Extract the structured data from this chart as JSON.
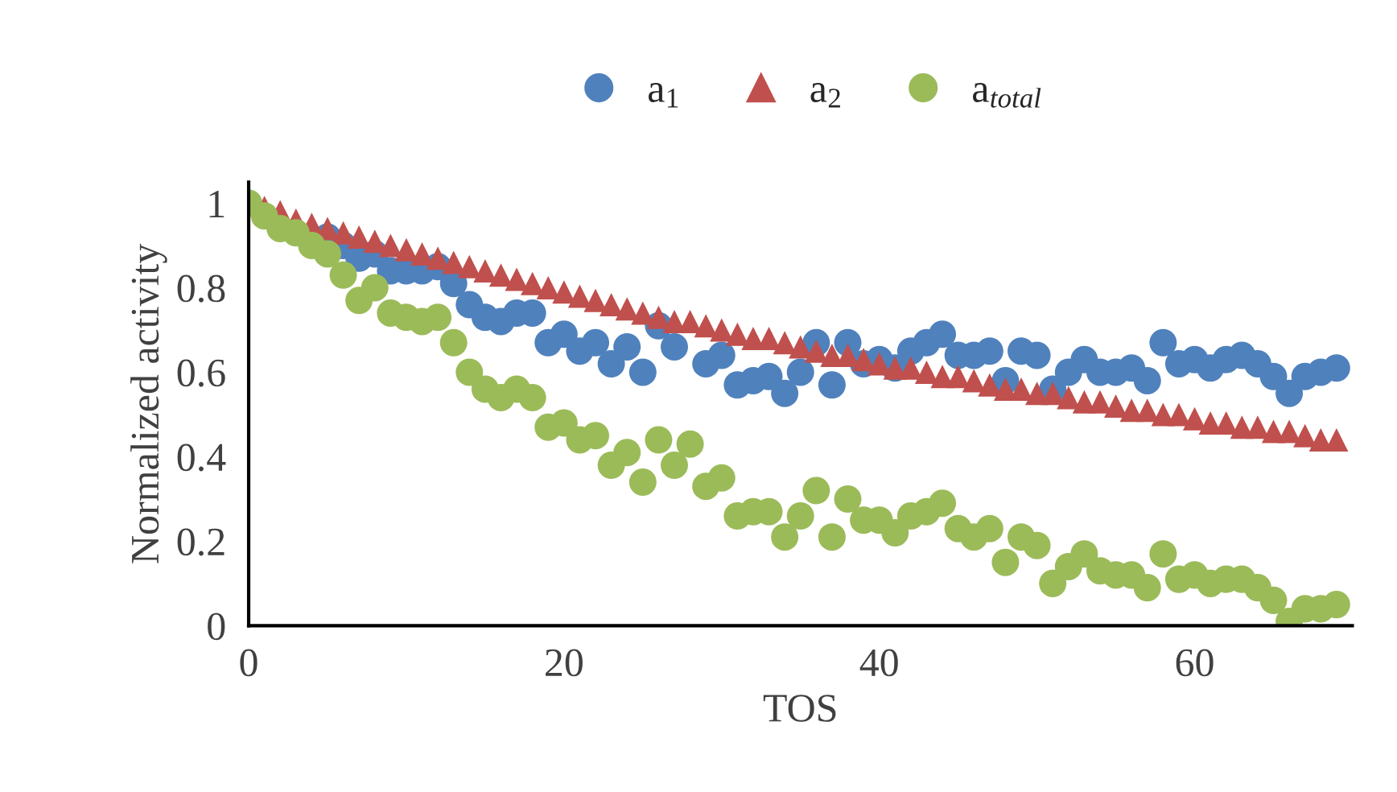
{
  "chart_data": {
    "type": "scatter",
    "xlabel": "TOS",
    "ylabel": "Normalized activity",
    "x": [
      0,
      1,
      2,
      3,
      4,
      5,
      6,
      7,
      8,
      9,
      10,
      11,
      12,
      13,
      14,
      15,
      16,
      17,
      18,
      19,
      20,
      21,
      22,
      23,
      24,
      25,
      26,
      27,
      28,
      29,
      30,
      31,
      32,
      33,
      34,
      35,
      36,
      37,
      38,
      39,
      40,
      41,
      42,
      43,
      44,
      45,
      46,
      47,
      48,
      49,
      50,
      51,
      52,
      53,
      54,
      55,
      56,
      57,
      58,
      59,
      60,
      61,
      62,
      63,
      64,
      65,
      66,
      67,
      68,
      69
    ],
    "series": [
      {
        "name": "a$_{1}$",
        "color": "#4f81bd",
        "marker": "circle",
        "values": [
          null,
          null,
          null,
          null,
          null,
          0.92,
          0.9,
          0.87,
          0.88,
          0.84,
          0.84,
          0.84,
          0.85,
          0.81,
          0.76,
          0.73,
          0.72,
          0.74,
          0.74,
          0.67,
          0.69,
          0.65,
          0.67,
          0.62,
          0.66,
          0.6,
          0.71,
          0.66,
          null,
          0.62,
          0.64,
          0.57,
          0.58,
          0.59,
          0.55,
          0.6,
          0.67,
          0.57,
          0.67,
          0.62,
          0.63,
          0.61,
          0.65,
          0.67,
          0.69,
          0.64,
          0.64,
          0.65,
          0.58,
          0.65,
          0.64,
          0.56,
          0.6,
          0.63,
          0.6,
          0.6,
          0.61,
          0.58,
          0.67,
          0.62,
          0.63,
          0.61,
          0.63,
          0.64,
          0.62,
          0.59,
          0.55,
          0.59,
          0.6,
          0.61
        ]
      },
      {
        "name": "a$_{2}$",
        "color": "#c0504d",
        "marker": "triangle",
        "values": [
          null,
          0.99,
          0.98,
          0.96,
          0.95,
          0.94,
          0.93,
          0.92,
          0.91,
          0.9,
          0.89,
          0.88,
          0.87,
          0.86,
          0.85,
          0.84,
          0.83,
          0.82,
          0.81,
          0.8,
          0.79,
          0.78,
          0.77,
          0.76,
          0.75,
          0.74,
          0.73,
          0.72,
          0.72,
          0.71,
          0.7,
          0.69,
          0.68,
          0.68,
          0.67,
          0.66,
          0.65,
          0.64,
          0.64,
          0.63,
          0.62,
          0.61,
          0.61,
          0.6,
          0.59,
          0.59,
          0.58,
          0.57,
          0.56,
          0.56,
          0.55,
          0.55,
          0.54,
          0.53,
          0.53,
          0.52,
          0.51,
          0.51,
          0.5,
          0.5,
          0.49,
          0.48,
          0.48,
          0.47,
          0.47,
          0.46,
          0.46,
          0.45,
          0.44,
          0.44
        ]
      },
      {
        "name": "a$_{total}$",
        "color": "#9bbb59",
        "marker": "circle",
        "values": [
          1.0,
          0.97,
          0.94,
          0.93,
          0.9,
          0.88,
          0.83,
          0.77,
          0.8,
          0.74,
          0.73,
          0.72,
          0.73,
          0.67,
          0.6,
          0.56,
          0.54,
          0.56,
          0.54,
          0.47,
          0.48,
          0.44,
          0.45,
          0.38,
          0.41,
          0.34,
          0.44,
          0.38,
          0.43,
          0.33,
          0.35,
          0.26,
          0.27,
          0.27,
          0.21,
          0.26,
          0.32,
          0.21,
          0.3,
          0.25,
          0.25,
          0.22,
          0.26,
          0.27,
          0.29,
          0.23,
          0.21,
          0.23,
          0.15,
          0.21,
          0.19,
          0.1,
          0.14,
          0.17,
          0.13,
          0.12,
          0.12,
          0.09,
          0.17,
          0.11,
          0.12,
          0.1,
          0.11,
          0.11,
          0.09,
          0.06,
          0.01,
          0.04,
          0.04,
          0.05
        ]
      }
    ],
    "xlim": [
      0,
      70
    ],
    "xticks": [
      0,
      20,
      40,
      60
    ],
    "ylim": [
      0,
      1.05
    ],
    "yticks": [
      0,
      {
        "value": 0.2,
        "label": "0.2"
      },
      {
        "value": 0.4,
        "label": "0.4"
      },
      {
        "value": 0.6,
        "label": "0.6"
      },
      {
        "value": 0.8,
        "label": "0.8"
      },
      1
    ],
    "grid": false,
    "legend": "top"
  }
}
